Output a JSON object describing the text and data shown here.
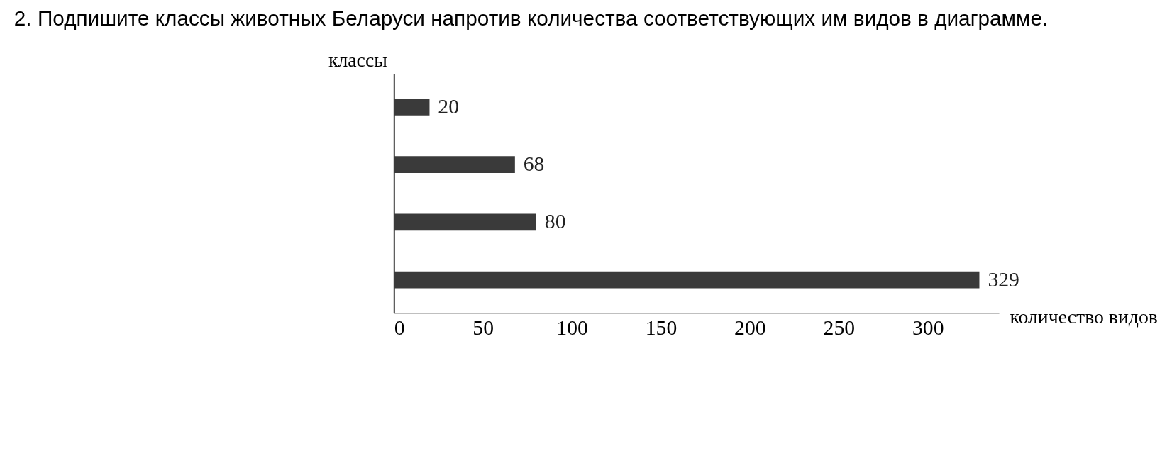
{
  "chart_data": {
    "type": "bar",
    "orientation": "horizontal",
    "title": "2. Подпишите классы животных Беларуси напротив количества соответствующих им видов в диаграмме.",
    "ylabel": "классы",
    "xlabel": "количество видов",
    "categories": [
      null,
      null,
      null,
      null
    ],
    "values": [
      20,
      68,
      80,
      329
    ],
    "color": "#3a3a3a",
    "xlim": [
      0,
      340
    ],
    "xticks": [
      0,
      50,
      100,
      150,
      200,
      250,
      300
    ],
    "data_labels": true,
    "grid": false
  }
}
